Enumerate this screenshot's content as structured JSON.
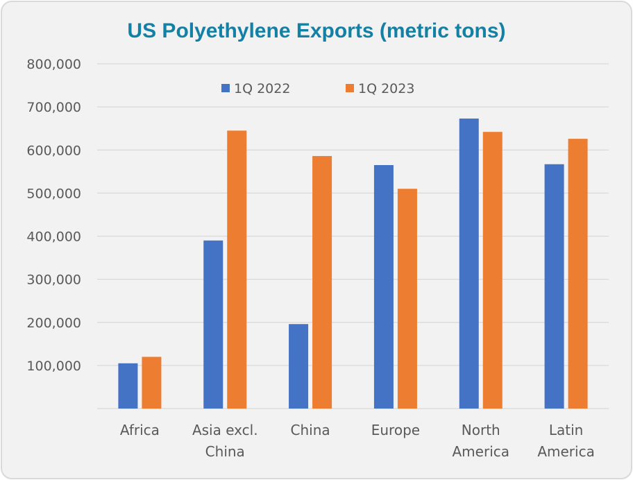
{
  "chart_data": {
    "type": "bar",
    "title": "US Polyethylene Exports (metric tons)",
    "categories": [
      [
        "Africa"
      ],
      [
        "Asia excl.",
        "China"
      ],
      [
        "China"
      ],
      [
        "Europe"
      ],
      [
        "North",
        "America"
      ],
      [
        "Latin",
        "America"
      ]
    ],
    "series": [
      {
        "name": "1Q 2022",
        "color": "#4472c4",
        "values": [
          105000,
          390000,
          196000,
          565000,
          673000,
          567000
        ]
      },
      {
        "name": "1Q 2023",
        "color": "#ed7d31",
        "values": [
          120000,
          645000,
          586000,
          510000,
          642000,
          626000
        ]
      }
    ],
    "ylim": [
      0,
      800000
    ],
    "yticks": [
      "100,000",
      "200,000",
      "300,000",
      "400,000",
      "500,000",
      "600,000",
      "700,000",
      "800,000"
    ],
    "ytick_values": [
      100000,
      200000,
      300000,
      400000,
      500000,
      600000,
      700000,
      800000
    ],
    "grid": true,
    "legend": "top-center"
  }
}
